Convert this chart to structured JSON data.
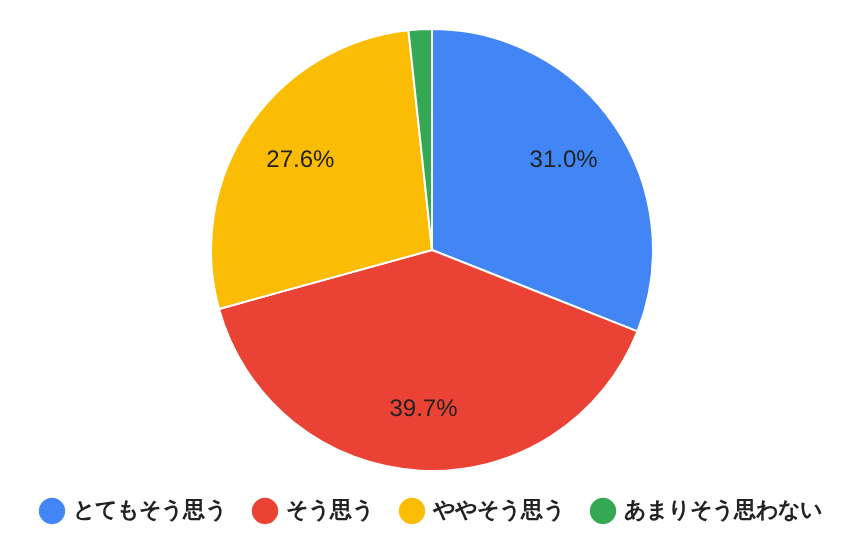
{
  "chart_data": {
    "type": "pie",
    "categories": [
      "とてもそう思う",
      "そう思う",
      "ややそう思う",
      "あまりそう思わない"
    ],
    "values": [
      31.0,
      39.7,
      27.6,
      1.7
    ],
    "colors": [
      "#4285f4",
      "#ea4335",
      "#fbbc04",
      "#34a853"
    ],
    "value_labels": [
      "31.0%",
      "39.7%",
      "27.6%",
      null
    ],
    "legend": "bottom"
  }
}
